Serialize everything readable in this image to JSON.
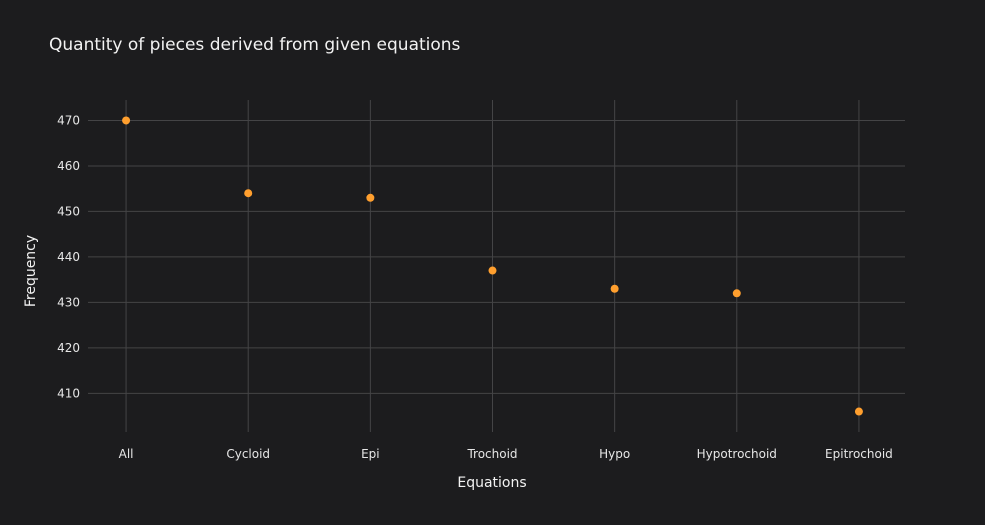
{
  "chart_data": {
    "type": "scatter",
    "title": "Quantity of pieces derived from given equations",
    "xlabel": "Equations",
    "ylabel": "Frequency",
    "categories": [
      "All",
      "Cycloid",
      "Epi",
      "Trochoid",
      "Hypo",
      "Hypotrochoid",
      "Epitrochoid"
    ],
    "series": [
      {
        "values": [
          470,
          454,
          453,
          437,
          433,
          432,
          406
        ]
      }
    ],
    "yticks": [
      410,
      420,
      430,
      440,
      450,
      460,
      470
    ],
    "ylim": [
      401.5,
      474.5
    ],
    "grid": true,
    "colors": {
      "marker": "#ff9f2e",
      "background": "#1c1c1e",
      "grid": "#444446",
      "text": "#f2f2f2"
    }
  }
}
